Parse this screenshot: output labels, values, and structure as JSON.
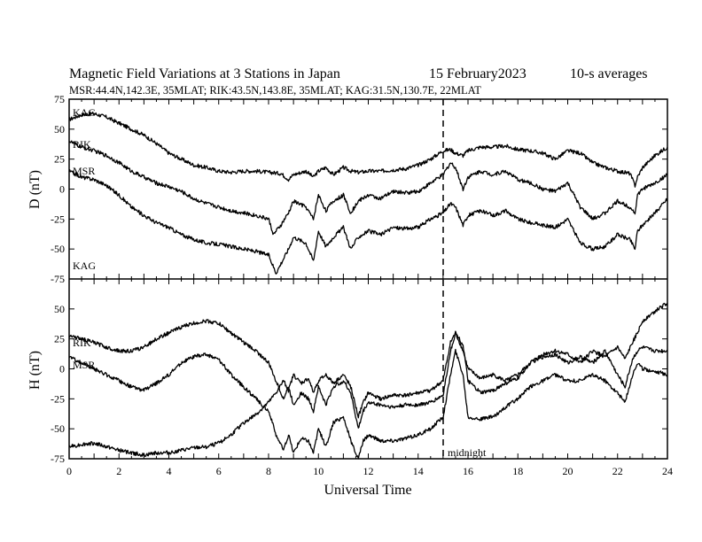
{
  "title": "Magnetic Field Variations at 3 Stations in Japan",
  "date": "15 February2023",
  "averaging": "10-s averages",
  "stations_line": "MSR:44.4N,142.3E, 35MLAT;  RIK:43.5N,143.8E, 35MLAT;  KAG:31.5N,130.7E, 22MLAT",
  "chart_data": [
    {
      "type": "line",
      "panel": "top",
      "ylabel": "D (nT)",
      "ylim": [
        -75,
        75
      ],
      "yticks": [
        -75,
        -50,
        -25,
        0,
        25,
        50,
        75
      ],
      "xlim": [
        0,
        24
      ],
      "xticks": [
        0,
        2,
        4,
        6,
        8,
        10,
        12,
        14,
        16,
        18,
        20,
        22,
        24
      ],
      "series": [
        {
          "name": "KAG",
          "x": [
            0,
            0.5,
            1,
            1.5,
            2,
            2.5,
            3,
            3.5,
            4,
            4.5,
            5,
            5.5,
            6,
            6.5,
            7,
            7.5,
            8,
            8.5,
            8.8,
            9,
            9.5,
            9.8,
            10,
            10.3,
            10.6,
            11,
            11.3,
            11.6,
            12,
            12.5,
            13,
            13.5,
            14,
            14.5,
            15,
            15.3,
            15.5,
            15.8,
            16,
            16.5,
            17,
            17.5,
            18,
            18.5,
            19,
            19.5,
            20,
            20.5,
            21,
            21.5,
            22,
            22.5,
            22.7,
            22.8,
            23,
            23.5,
            24
          ],
          "y": [
            58,
            62,
            63,
            60,
            55,
            50,
            45,
            38,
            30,
            25,
            20,
            18,
            15,
            14,
            15,
            15,
            14,
            13,
            8,
            12,
            15,
            10,
            15,
            18,
            12,
            18,
            15,
            14,
            15,
            15,
            16,
            17,
            20,
            25,
            32,
            33,
            30,
            28,
            32,
            35,
            35,
            36,
            33,
            32,
            30,
            25,
            32,
            30,
            22,
            18,
            15,
            13,
            3,
            10,
            18,
            28,
            35
          ]
        },
        {
          "name": "RIK",
          "x": [
            0,
            0.5,
            1,
            1.5,
            2,
            2.5,
            3,
            3.5,
            4,
            4.5,
            5,
            5.5,
            6,
            6.5,
            7,
            7.5,
            8,
            8.2,
            8.5,
            8.8,
            9,
            9.5,
            9.8,
            10,
            10.3,
            10.6,
            11,
            11.3,
            11.6,
            12,
            12.5,
            13,
            13.5,
            14,
            14.5,
            15,
            15.3,
            15.5,
            15.8,
            16,
            16.5,
            17,
            17.5,
            18,
            18.5,
            19,
            19.5,
            20,
            20.5,
            21,
            21.5,
            22,
            22.5,
            22.7,
            22.8,
            23,
            23.5,
            24
          ],
          "y": [
            40,
            35,
            32,
            28,
            22,
            15,
            10,
            5,
            2,
            -2,
            -8,
            -12,
            -15,
            -18,
            -20,
            -22,
            -25,
            -38,
            -30,
            -20,
            -10,
            -15,
            -25,
            -5,
            -18,
            -10,
            -5,
            -20,
            -10,
            -5,
            -8,
            -2,
            -3,
            -2,
            5,
            12,
            22,
            18,
            0,
            10,
            15,
            12,
            15,
            8,
            5,
            0,
            -2,
            5,
            -15,
            -25,
            -20,
            -10,
            -15,
            -20,
            -5,
            0,
            5,
            12
          ]
        },
        {
          "name": "MSR",
          "x": [
            0,
            0.5,
            1,
            1.5,
            2,
            2.5,
            3,
            3.5,
            4,
            4.5,
            5,
            5.5,
            6,
            6.5,
            7,
            7.5,
            8,
            8.3,
            8.5,
            8.8,
            9,
            9.5,
            9.8,
            10,
            10.3,
            10.6,
            11,
            11.3,
            11.6,
            12,
            12.5,
            13,
            13.5,
            14,
            14.5,
            15,
            15.3,
            15.5,
            15.8,
            16,
            16.5,
            17,
            17.5,
            18,
            18.5,
            19,
            19.5,
            20,
            20.5,
            21,
            21.5,
            22,
            22.5,
            22.7,
            22.8,
            23,
            23.5,
            24
          ],
          "y": [
            15,
            10,
            8,
            3,
            -5,
            -15,
            -22,
            -28,
            -32,
            -38,
            -42,
            -45,
            -46,
            -48,
            -50,
            -52,
            -55,
            -70,
            -62,
            -50,
            -40,
            -45,
            -60,
            -35,
            -48,
            -40,
            -32,
            -50,
            -40,
            -35,
            -38,
            -32,
            -33,
            -32,
            -25,
            -20,
            -12,
            -15,
            -30,
            -22,
            -18,
            -22,
            -18,
            -25,
            -28,
            -30,
            -32,
            -25,
            -45,
            -50,
            -48,
            -38,
            -42,
            -50,
            -35,
            -30,
            -20,
            -8
          ]
        }
      ],
      "annotations": [
        "KAG",
        "RIK",
        "MSR",
        "KAG"
      ],
      "vline_x": 15
    },
    {
      "type": "line",
      "panel": "bottom",
      "ylabel": "H (nT)",
      "ylim": [
        -75,
        75
      ],
      "yticks": [
        -75,
        -50,
        -25,
        0,
        25,
        50
      ],
      "xlim": [
        0,
        24
      ],
      "xticks": [
        0,
        2,
        4,
        6,
        8,
        10,
        12,
        14,
        16,
        18,
        20,
        22,
        24
      ],
      "xlabel": "Universal Time",
      "series": [
        {
          "name": "KAG",
          "x": [
            0,
            0.5,
            1,
            1.5,
            2,
            2.5,
            3,
            3.5,
            4,
            4.5,
            5,
            5.5,
            6,
            6.5,
            7,
            7.5,
            8,
            8.3,
            8.6,
            8.8,
            9,
            9.3,
            9.6,
            9.8,
            10,
            10.3,
            10.6,
            11,
            11.3,
            11.6,
            11.8,
            12,
            12.5,
            13,
            13.5,
            14,
            14.5,
            15,
            15.3,
            15.5,
            15.8,
            16,
            16.5,
            17,
            17.5,
            18,
            18.5,
            19,
            19.5,
            20,
            20.5,
            21,
            21.5,
            22,
            22.3,
            22.6,
            22.8,
            23,
            23.5,
            24
          ],
          "y": [
            -65,
            -63,
            -62,
            -65,
            -68,
            -70,
            -72,
            -70,
            -70,
            -68,
            -66,
            -65,
            -62,
            -55,
            -45,
            -38,
            -28,
            -20,
            -10,
            -18,
            -5,
            -12,
            -8,
            -20,
            -10,
            -5,
            -12,
            -5,
            -15,
            -40,
            -28,
            -20,
            -25,
            -22,
            -22,
            -20,
            -18,
            -10,
            22,
            30,
            15,
            0,
            -8,
            -5,
            -10,
            -5,
            5,
            12,
            15,
            12,
            5,
            15,
            10,
            18,
            8,
            22,
            30,
            40,
            48,
            55
          ]
        },
        {
          "name": "RIK",
          "x": [
            0,
            0.5,
            1,
            1.5,
            2,
            2.5,
            3,
            3.5,
            4,
            4.5,
            5,
            5.5,
            6,
            6.5,
            7,
            7.5,
            8,
            8.3,
            8.6,
            8.8,
            9,
            9.3,
            9.6,
            9.8,
            10,
            10.3,
            10.6,
            11,
            11.3,
            11.6,
            11.8,
            12,
            12.5,
            13,
            13.5,
            14,
            14.5,
            15,
            15.3,
            15.5,
            15.8,
            16,
            16.5,
            17,
            17.5,
            18,
            18.5,
            19,
            19.5,
            20,
            20.5,
            21,
            21.5,
            22,
            22.3,
            22.6,
            22.8,
            23,
            23.5,
            24
          ],
          "y": [
            28,
            25,
            22,
            18,
            15,
            15,
            18,
            25,
            30,
            35,
            38,
            40,
            38,
            30,
            22,
            15,
            5,
            -10,
            -25,
            -15,
            -30,
            -20,
            -25,
            -35,
            -15,
            -30,
            -15,
            -10,
            -20,
            -50,
            -35,
            -28,
            -30,
            -32,
            -30,
            -30,
            -28,
            -22,
            15,
            30,
            20,
            -10,
            -20,
            -18,
            -12,
            -8,
            5,
            10,
            12,
            5,
            10,
            5,
            15,
            -5,
            -15,
            8,
            15,
            18,
            15,
            15
          ]
        },
        {
          "name": "MSR",
          "x": [
            0,
            0.5,
            1,
            1.5,
            2,
            2.5,
            3,
            3.5,
            4,
            4.5,
            5,
            5.5,
            6,
            6.5,
            7,
            7.5,
            8,
            8.3,
            8.6,
            8.8,
            9,
            9.3,
            9.6,
            9.8,
            10,
            10.3,
            10.6,
            11,
            11.3,
            11.6,
            11.8,
            12,
            12.5,
            13,
            13.5,
            14,
            14.5,
            15,
            15.3,
            15.5,
            15.8,
            16,
            16.5,
            17,
            17.5,
            18,
            18.5,
            19,
            19.5,
            20,
            20.5,
            21,
            21.5,
            22,
            22.3,
            22.6,
            22.8,
            23,
            23.5,
            24
          ],
          "y": [
            10,
            5,
            0,
            -5,
            -10,
            -15,
            -18,
            -12,
            -5,
            5,
            10,
            12,
            8,
            -5,
            -15,
            -25,
            -35,
            -55,
            -68,
            -55,
            -70,
            -58,
            -60,
            -70,
            -50,
            -65,
            -45,
            -40,
            -60,
            -75,
            -60,
            -55,
            -60,
            -60,
            -58,
            -55,
            -50,
            -40,
            -5,
            15,
            -5,
            -40,
            -42,
            -40,
            -32,
            -25,
            -15,
            -10,
            -5,
            -10,
            -10,
            -5,
            -10,
            -20,
            -28,
            -5,
            5,
            0,
            -2,
            -5
          ]
        }
      ],
      "annotations": [
        "RIK",
        "MSR"
      ],
      "vline_label": "midnight",
      "vline_x": 15
    }
  ]
}
